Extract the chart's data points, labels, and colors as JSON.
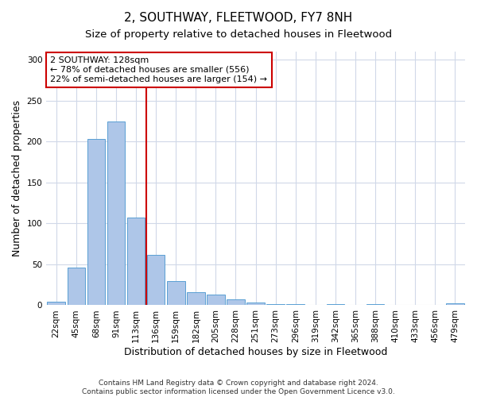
{
  "title": "2, SOUTHWAY, FLEETWOOD, FY7 8NH",
  "subtitle": "Size of property relative to detached houses in Fleetwood",
  "xlabel": "Distribution of detached houses by size in Fleetwood",
  "ylabel": "Number of detached properties",
  "categories": [
    "22sqm",
    "45sqm",
    "68sqm",
    "91sqm",
    "113sqm",
    "136sqm",
    "159sqm",
    "182sqm",
    "205sqm",
    "228sqm",
    "251sqm",
    "273sqm",
    "296sqm",
    "319sqm",
    "342sqm",
    "365sqm",
    "388sqm",
    "410sqm",
    "433sqm",
    "456sqm",
    "479sqm"
  ],
  "values": [
    4,
    46,
    203,
    225,
    107,
    62,
    30,
    16,
    13,
    7,
    3,
    1,
    1,
    0,
    1,
    0,
    1,
    0,
    0,
    0,
    2
  ],
  "bar_color": "#aec6e8",
  "bar_edge_color": "#5a9fd4",
  "grid_color": "#d0d8e8",
  "vline_x_index": 4.5,
  "vline_color": "#cc0000",
  "annotation_text": "2 SOUTHWAY: 128sqm\n← 78% of detached houses are smaller (556)\n22% of semi-detached houses are larger (154) →",
  "annotation_box_color": "#ffffff",
  "annotation_box_edge": "#cc0000",
  "ylim": [
    0,
    310
  ],
  "yticks": [
    0,
    50,
    100,
    150,
    200,
    250,
    300
  ],
  "footer": "Contains HM Land Registry data © Crown copyright and database right 2024.\nContains public sector information licensed under the Open Government Licence v3.0.",
  "title_fontsize": 11,
  "subtitle_fontsize": 9.5,
  "axis_label_fontsize": 9,
  "tick_fontsize": 7.5,
  "annotation_fontsize": 8,
  "footer_fontsize": 6.5
}
